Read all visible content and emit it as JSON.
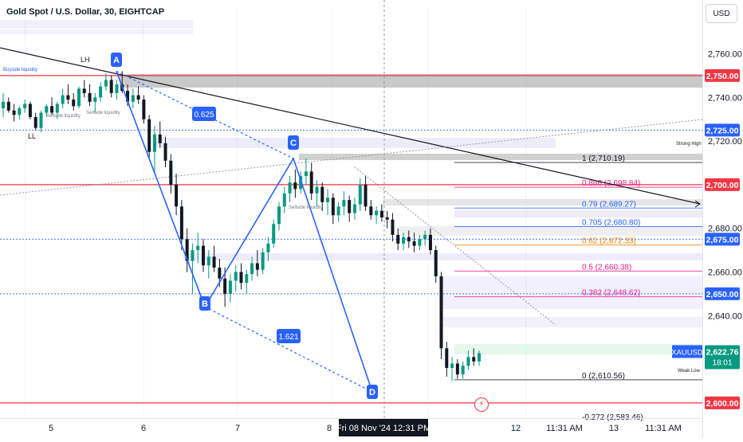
{
  "header": {
    "title": "Gold Spot / U.S. Dollar, 30, EIGHTCAP",
    "currency": "USD"
  },
  "chart_data": {
    "type": "candlestick",
    "symbol": "XAUUSD",
    "ylim": [
      2593,
      2781
    ],
    "y_ticks": [
      2760,
      2740,
      2720,
      2680,
      2660,
      2640
    ],
    "x_ticks": [
      "5",
      "6",
      "7",
      "8",
      "12",
      "11:31 AM",
      "13",
      "11:31 AM"
    ],
    "crosshair": {
      "time_label": "Fri 08 Nov '24   12:31 PM"
    },
    "last_price": {
      "label": "XAUUSD",
      "value": "2,622.76",
      "countdown": "18:01",
      "price": 2622.76
    },
    "price_labels": [
      {
        "text": "2,750.00",
        "price": 2750,
        "color": "#f23645"
      },
      {
        "text": "2,725.00",
        "price": 2725,
        "color": "#2962ff"
      },
      {
        "text": "2,700.00",
        "price": 2700,
        "color": "#f23645"
      },
      {
        "text": "2,675.00",
        "price": 2675,
        "color": "#2962ff"
      },
      {
        "text": "2,650.00",
        "price": 2650,
        "color": "#2962ff"
      },
      {
        "text": "2,600.00",
        "price": 2600,
        "color": "#f23645"
      }
    ],
    "fibonacci": [
      {
        "level": "1",
        "label": "1 (2,710.19)",
        "price": 2710.19,
        "color": "#131722"
      },
      {
        "level": "0.886",
        "label": "0.886 (2,698.84)",
        "price": 2698.84,
        "color": "#e91e8c"
      },
      {
        "level": "0.79",
        "label": "0.79 (2,689.27)",
        "price": 2689.27,
        "color": "#2962ff"
      },
      {
        "level": "0.705",
        "label": "0.705 (2,680.80)",
        "price": 2680.8,
        "color": "#2962ff"
      },
      {
        "level": "0.62",
        "label": "0.62 (2,672.33)",
        "price": 2672.33,
        "color": "#f57c00"
      },
      {
        "level": "0.5",
        "label": "0.5 (2,660.38)",
        "price": 2660.38,
        "color": "#e91e8c"
      },
      {
        "level": "0.382",
        "label": "0.382 (2,648.62)",
        "price": 2648.62,
        "color": "#e91e8c"
      },
      {
        "level": "0",
        "label": "0 (2,610.56)",
        "price": 2610.56,
        "color": "#131722"
      },
      {
        "level": "-0.272",
        "label": "-0.272 (2,583.46)",
        "price": 2583.46,
        "color": "#131722"
      }
    ],
    "harmonic_pattern": {
      "points": [
        {
          "name": "A",
          "price": 2752
        },
        {
          "name": "B",
          "price": 2644
        },
        {
          "name": "C",
          "price": 2712
        },
        {
          "name": "D",
          "price": 2605
        }
      ],
      "ratios": [
        "0.625",
        "1.621"
      ]
    },
    "annotations": [
      "LH",
      "LL",
      "Sellside liquidity",
      "Sellside liquidity",
      "Sellside liquidity",
      "Buyside liquidity",
      "Strong High",
      "Weak Low"
    ],
    "candles": [
      [
        2735,
        2742,
        2731,
        2738
      ],
      [
        2738,
        2740,
        2733,
        2734
      ],
      [
        2734,
        2737,
        2729,
        2732
      ],
      [
        2732,
        2736,
        2730,
        2735
      ],
      [
        2735,
        2739,
        2733,
        2737
      ],
      [
        2737,
        2738,
        2730,
        2731
      ],
      [
        2731,
        2733,
        2725,
        2726
      ],
      [
        2726,
        2734,
        2724,
        2733
      ],
      [
        2733,
        2737,
        2731,
        2736
      ],
      [
        2736,
        2740,
        2732,
        2733
      ],
      [
        2733,
        2738,
        2730,
        2737
      ],
      [
        2737,
        2744,
        2735,
        2741
      ],
      [
        2741,
        2746,
        2737,
        2739
      ],
      [
        2739,
        2742,
        2734,
        2736
      ],
      [
        2736,
        2745,
        2735,
        2744
      ],
      [
        2744,
        2748,
        2740,
        2742
      ],
      [
        2742,
        2746,
        2736,
        2738
      ],
      [
        2738,
        2742,
        2733,
        2740
      ],
      [
        2740,
        2747,
        2738,
        2745
      ],
      [
        2745,
        2751,
        2743,
        2748
      ],
      [
        2748,
        2750,
        2740,
        2742
      ],
      [
        2742,
        2748,
        2739,
        2746
      ],
      [
        2746,
        2752,
        2742,
        2743
      ],
      [
        2743,
        2746,
        2736,
        2738
      ],
      [
        2738,
        2744,
        2735,
        2741
      ],
      [
        2741,
        2745,
        2737,
        2739
      ],
      [
        2739,
        2741,
        2728,
        2730
      ],
      [
        2730,
        2732,
        2712,
        2715
      ],
      [
        2715,
        2727,
        2705,
        2723
      ],
      [
        2723,
        2729,
        2717,
        2719
      ],
      [
        2719,
        2722,
        2708,
        2711
      ],
      [
        2711,
        2714,
        2696,
        2700
      ],
      [
        2700,
        2705,
        2686,
        2690
      ],
      [
        2690,
        2693,
        2670,
        2675
      ],
      [
        2675,
        2680,
        2660,
        2665
      ],
      [
        2665,
        2673,
        2650,
        2670
      ],
      [
        2670,
        2678,
        2664,
        2672
      ],
      [
        2672,
        2675,
        2660,
        2663
      ],
      [
        2663,
        2670,
        2657,
        2667
      ],
      [
        2667,
        2672,
        2660,
        2662
      ],
      [
        2662,
        2666,
        2653,
        2657
      ],
      [
        2657,
        2662,
        2644,
        2650
      ],
      [
        2650,
        2659,
        2646,
        2656
      ],
      [
        2656,
        2663,
        2651,
        2660
      ],
      [
        2660,
        2664,
        2652,
        2655
      ],
      [
        2655,
        2661,
        2650,
        2659
      ],
      [
        2659,
        2667,
        2656,
        2664
      ],
      [
        2664,
        2670,
        2658,
        2661
      ],
      [
        2661,
        2671,
        2659,
        2669
      ],
      [
        2669,
        2676,
        2665,
        2673
      ],
      [
        2673,
        2684,
        2671,
        2682
      ],
      [
        2682,
        2692,
        2679,
        2690
      ],
      [
        2690,
        2699,
        2687,
        2696
      ],
      [
        2696,
        2704,
        2692,
        2701
      ],
      [
        2701,
        2707,
        2694,
        2698
      ],
      [
        2698,
        2706,
        2696,
        2704
      ],
      [
        2704,
        2712,
        2700,
        2706
      ],
      [
        2706,
        2710,
        2693,
        2696
      ],
      [
        2696,
        2702,
        2690,
        2699
      ],
      [
        2699,
        2701,
        2688,
        2692
      ],
      [
        2692,
        2698,
        2686,
        2694
      ],
      [
        2694,
        2696,
        2682,
        2686
      ],
      [
        2686,
        2692,
        2683,
        2690
      ],
      [
        2690,
        2697,
        2686,
        2693
      ],
      [
        2693,
        2695,
        2683,
        2687
      ],
      [
        2687,
        2694,
        2684,
        2691
      ],
      [
        2691,
        2703,
        2688,
        2700
      ],
      [
        2700,
        2704,
        2688,
        2690
      ],
      [
        2690,
        2693,
        2684,
        2686
      ],
      [
        2686,
        2690,
        2682,
        2688
      ],
      [
        2688,
        2691,
        2683,
        2685
      ],
      [
        2685,
        2688,
        2680,
        2684
      ],
      [
        2684,
        2687,
        2674,
        2677
      ],
      [
        2677,
        2680,
        2670,
        2673
      ],
      [
        2673,
        2678,
        2670,
        2676
      ],
      [
        2676,
        2679,
        2671,
        2674
      ],
      [
        2674,
        2678,
        2669,
        2672
      ],
      [
        2672,
        2677,
        2670,
        2675
      ],
      [
        2675,
        2679,
        2672,
        2677
      ],
      [
        2677,
        2680,
        2668,
        2670
      ],
      [
        2670,
        2672,
        2655,
        2658
      ],
      [
        2658,
        2660,
        2620,
        2625
      ],
      [
        2625,
        2628,
        2612,
        2616
      ],
      [
        2616,
        2621,
        2610,
        2618
      ],
      [
        2618,
        2620,
        2611,
        2613
      ],
      [
        2613,
        2619,
        2611,
        2617
      ],
      [
        2617,
        2624,
        2615,
        2621
      ],
      [
        2621,
        2625,
        2617,
        2619
      ],
      [
        2619,
        2624,
        2617,
        2622.76
      ]
    ]
  }
}
